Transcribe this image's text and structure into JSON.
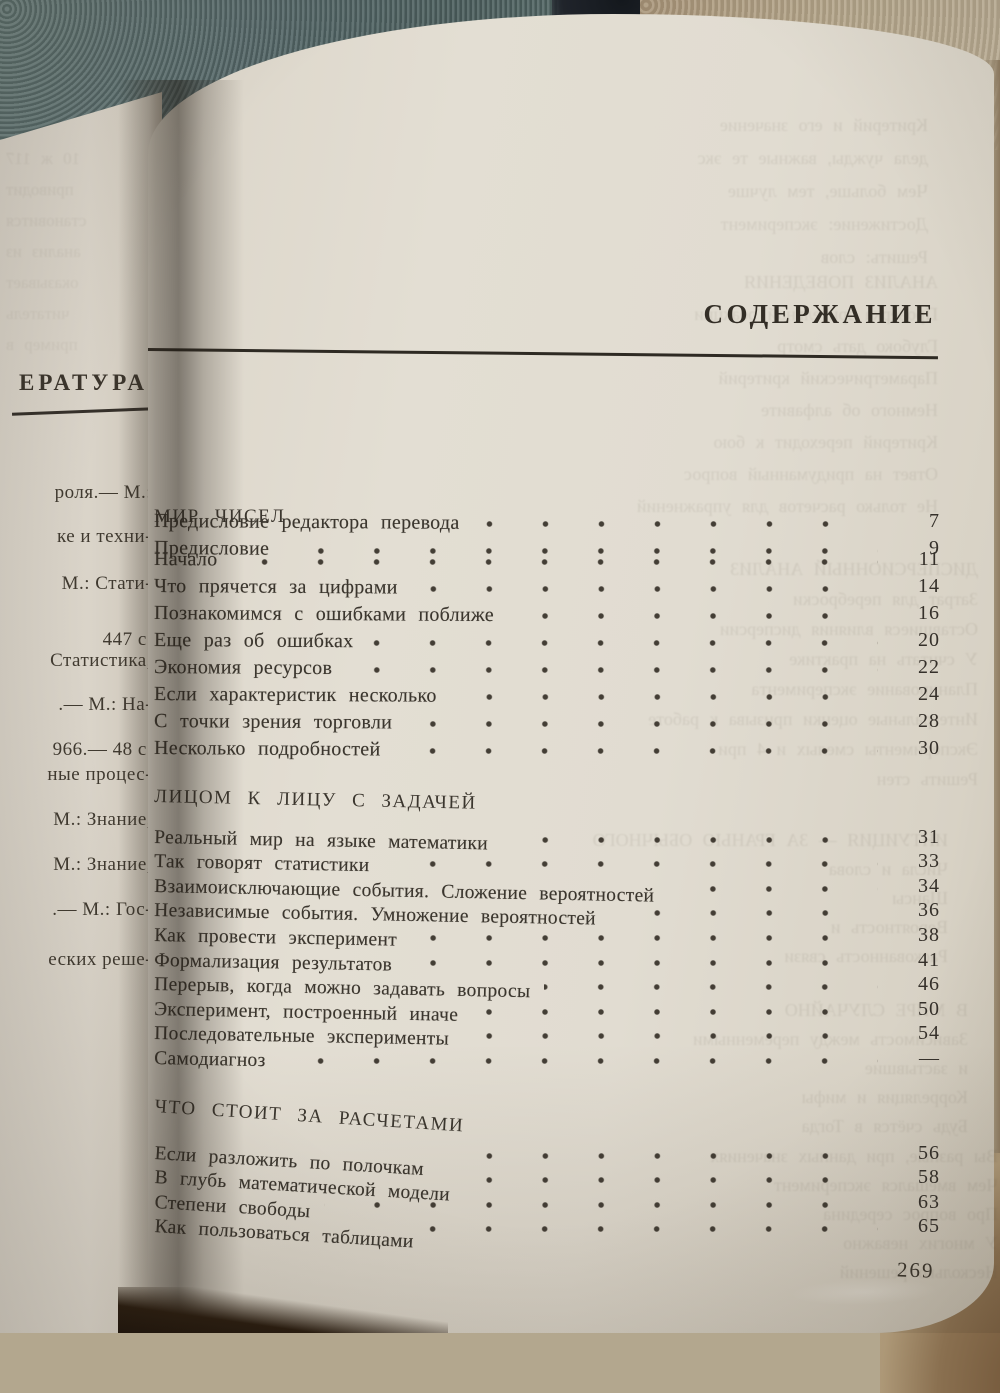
{
  "palette": {
    "paper": "#e1dcd1",
    "paper_edge": "#ccc5b6",
    "ink": "#3b362e",
    "rule": "#2e2a23",
    "fabric_teal": "#56696a",
    "fabric_tan": "#b8a98d",
    "dark_gap": "#20242b",
    "gutter_shadow": "#2d261e",
    "bottom_wedge": "#2a1d10"
  },
  "left_page": {
    "header": "ЕРАТУРА",
    "fragments": [
      "роля.— М.:",
      "ке и техни-",
      "М.: Стати-",
      "447 с.",
      "Статистика,",
      ".— М.: На-",
      "966.— 48 с.",
      "ные процес-",
      "М.: Знание,",
      "М.: Знание,",
      ".— М.: Гос-",
      "еских реше-"
    ]
  },
  "right_page": {
    "title": "СОДЕРЖАНИЕ",
    "page_number": "269",
    "front_matter": [
      {
        "label": "Предисловие редактора перевода",
        "page": "7"
      },
      {
        "label": "Предисловие",
        "page": "9"
      }
    ],
    "sections": [
      {
        "heading": "МИР ЧИСЕЛ",
        "entries": [
          {
            "label": "Начало",
            "page": "11"
          },
          {
            "label": "Что прячется за цифрами",
            "page": "14"
          },
          {
            "label": "Познакомимся с ошибками поближе",
            "page": "16"
          },
          {
            "label": "Еще раз об ошибках",
            "page": "20"
          },
          {
            "label": "Экономия  ресурсов",
            "page": "22"
          },
          {
            "label": "Если характеристик несколько",
            "page": "24"
          },
          {
            "label": "С точки зрения торговли",
            "page": "28"
          },
          {
            "label": "Несколько  подробностей",
            "page": "30"
          }
        ]
      },
      {
        "heading": "ЛИЦОМ К ЛИЦУ С ЗАДАЧЕЙ",
        "entries": [
          {
            "label": "Реальный мир на языке математики",
            "page": "31"
          },
          {
            "label": "Так говорят статистики",
            "page": "33"
          },
          {
            "label": "Взаимоисключающие события. Сложение вероятностей",
            "page": "34"
          },
          {
            "label": "Независимые события. Умножение вероятностей",
            "page": "36"
          },
          {
            "label": "Как провести эксперимент",
            "page": "38"
          },
          {
            "label": "Формализация  результатов",
            "page": "41"
          },
          {
            "label": "Перерыв, когда можно задавать вопросы",
            "page": "46"
          },
          {
            "label": "Эксперимент, построенный иначе",
            "page": "50"
          },
          {
            "label": "Последовательные  эксперименты",
            "page": "54"
          },
          {
            "label": "Самодиагноз",
            "page": "—"
          }
        ]
      },
      {
        "heading": "ЧТО СТОИТ ЗА РАСЧЕТАМИ",
        "entries": [
          {
            "label": "Если разложить по полочкам",
            "page": "56"
          },
          {
            "label": "В глубь математической модели",
            "page": "58"
          },
          {
            "label": "Степени  свободы",
            "page": "63"
          },
          {
            "label": "Как пользоваться таблицами",
            "page": "65"
          }
        ]
      }
    ]
  },
  "bleedthrough": {
    "right_top": [
      "Критерий и его значение",
      "дела чужды, важные те экс",
      "Чем больше, тем лучше",
      "Достижение: эксперимент",
      "Решить: слов"
    ],
    "right_head": [
      "АНАЛИЗ ПОВЕДЕНИЯ",
      "Проверка зрительной реакции",
      "Глубоко дать смотр",
      "Параметрический критерий",
      "Немного об алфавите",
      "Критерий переходит к бою",
      "Ответ на придуманный вопрос",
      "Не только расчетов для упражнений"
    ],
    "right_mid": [
      "ДИСПЕРСИОННЫЙ АНАЛИЗ",
      "Затрат для переброски",
      "Оставшиеся влияния дисперсии",
      "У считать на практике",
      "Планирование эксперимента",
      "Интегральные оценки призыва к работе",
      "Эксперименты смелых и 4 при",
      "Решить стен"
    ],
    "right_low": [
      "ИНТУИЦИЯ — ЗА ГРАНЬЮ ОБЫЧНОГО",
      "Числа и слова",
      "Шансы",
      "Вероятность и",
      "Раскованность связи"
    ],
    "right_bot": [
      "В МИРЕ СЛУЧАЙНО",
      "Зависимость между переменными",
      "и застывшие",
      "Корреляция и мифы",
      "Будь счётся в Тогда"
    ],
    "right_foot": [
      "Вы разные, при данных значениях",
      "Чем вмешался эксперимент",
      "Про вопрос середина",
      "У многих неважно",
      "Несколько решений"
    ],
    "left_page": [
      "10 ж 117",
      "приводит",
      "становится",
      "анализ из",
      "оказывает",
      "читатель",
      "пример в"
    ]
  }
}
